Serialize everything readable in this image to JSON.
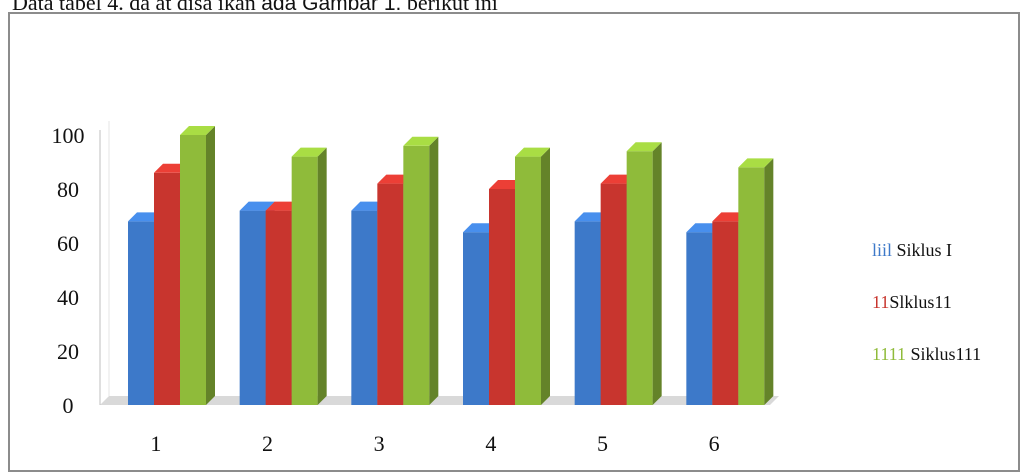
{
  "caption": {
    "part1": "Data tabel 4. da  at disa  ikan  ",
    "part2": "ada Gambar  1.",
    "part3": " berikut ini"
  },
  "colors": {
    "siklus1": "#3d79c9",
    "siklus2": "#c8352e",
    "siklus3": "#8fbb3a"
  },
  "chart_data": {
    "type": "bar",
    "style": "3d clustered column",
    "categories": [
      "1",
      "2",
      "3",
      "4",
      "5",
      "6"
    ],
    "series": [
      {
        "name": "Siklus I",
        "values": [
          68,
          72,
          72,
          64,
          68,
          64
        ]
      },
      {
        "name": "Siklus II",
        "values": [
          86,
          72,
          82,
          80,
          82,
          68
        ]
      },
      {
        "name": "Siklus III",
        "values": [
          100,
          92,
          96,
          92,
          94,
          88
        ]
      }
    ],
    "y_ticks": [
      "100",
      "80",
      "60",
      "40",
      "20",
      "0"
    ],
    "ylim": [
      0,
      100
    ],
    "legend": {
      "position": "right",
      "entries": [
        {
          "marker": "liil",
          "label": "Siklus I",
          "color_key": "siklus1"
        },
        {
          "marker": "11",
          "label": "Slklus11",
          "color_key": "siklus2"
        },
        {
          "marker": "1111",
          "label": "Siklus111",
          "color_key": "siklus3"
        }
      ]
    },
    "grid": false
  }
}
